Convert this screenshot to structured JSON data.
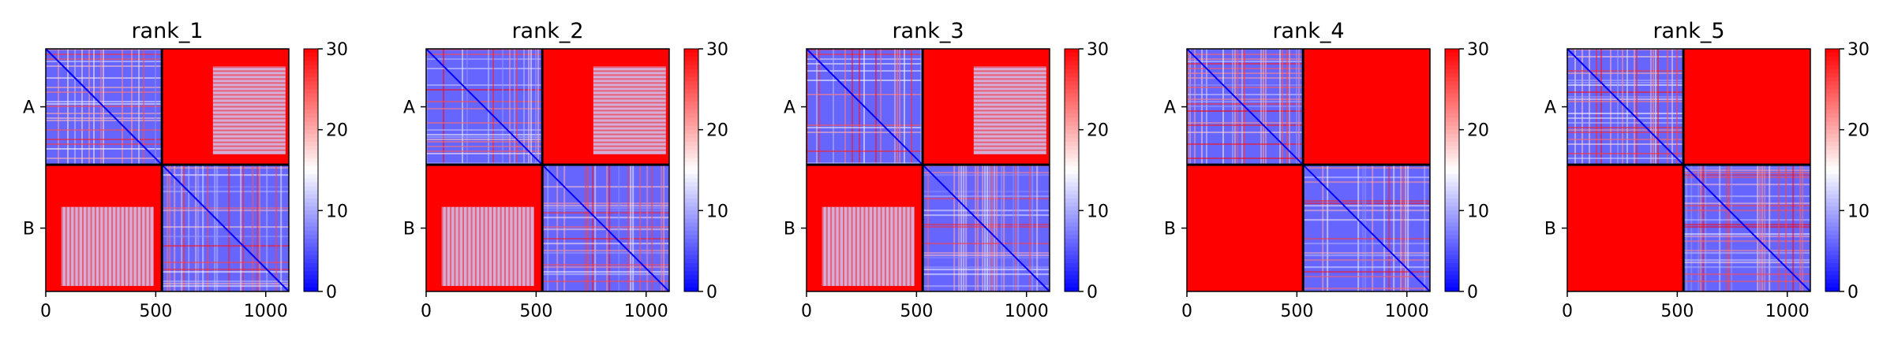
{
  "colors": {
    "low": "#0000ff",
    "mid": "#ffffff",
    "high": "#ff0000",
    "frame": "#000000",
    "chain_line": "#000000"
  },
  "chart_data": [
    {
      "type": "heatmap",
      "title": "rank_1",
      "chains": [
        "A",
        "B"
      ],
      "chain_boundary": 528,
      "xlim": [
        0,
        1105
      ],
      "xticks": [
        0,
        500,
        1000
      ],
      "colorbar": {
        "min": 0,
        "max": 30,
        "ticks": [
          0,
          10,
          20,
          30
        ]
      },
      "cmap": "bwr",
      "interchain": "high"
    },
    {
      "type": "heatmap",
      "title": "rank_2",
      "chains": [
        "A",
        "B"
      ],
      "chain_boundary": 528,
      "xlim": [
        0,
        1105
      ],
      "xticks": [
        0,
        500,
        1000
      ],
      "colorbar": {
        "min": 0,
        "max": 30,
        "ticks": [
          0,
          10,
          20,
          30
        ]
      },
      "cmap": "bwr",
      "interchain": "high"
    },
    {
      "type": "heatmap",
      "title": "rank_3",
      "chains": [
        "A",
        "B"
      ],
      "chain_boundary": 528,
      "xlim": [
        0,
        1105
      ],
      "xticks": [
        0,
        500,
        1000
      ],
      "colorbar": {
        "min": 0,
        "max": 30,
        "ticks": [
          0,
          10,
          20,
          30
        ]
      },
      "cmap": "bwr",
      "interchain": "high"
    },
    {
      "type": "heatmap",
      "title": "rank_4",
      "chains": [
        "A",
        "B"
      ],
      "chain_boundary": 528,
      "xlim": [
        0,
        1105
      ],
      "xticks": [
        0,
        500,
        1000
      ],
      "colorbar": {
        "min": 0,
        "max": 30,
        "ticks": [
          0,
          10,
          20,
          30
        ]
      },
      "cmap": "bwr",
      "interchain": "high"
    },
    {
      "type": "heatmap",
      "title": "rank_5",
      "chains": [
        "A",
        "B"
      ],
      "chain_boundary": 528,
      "xlim": [
        0,
        1105
      ],
      "xticks": [
        0,
        500,
        1000
      ],
      "colorbar": {
        "min": 0,
        "max": 30,
        "ticks": [
          0,
          10,
          20,
          30
        ]
      },
      "cmap": "bwr",
      "interchain": "high"
    }
  ]
}
